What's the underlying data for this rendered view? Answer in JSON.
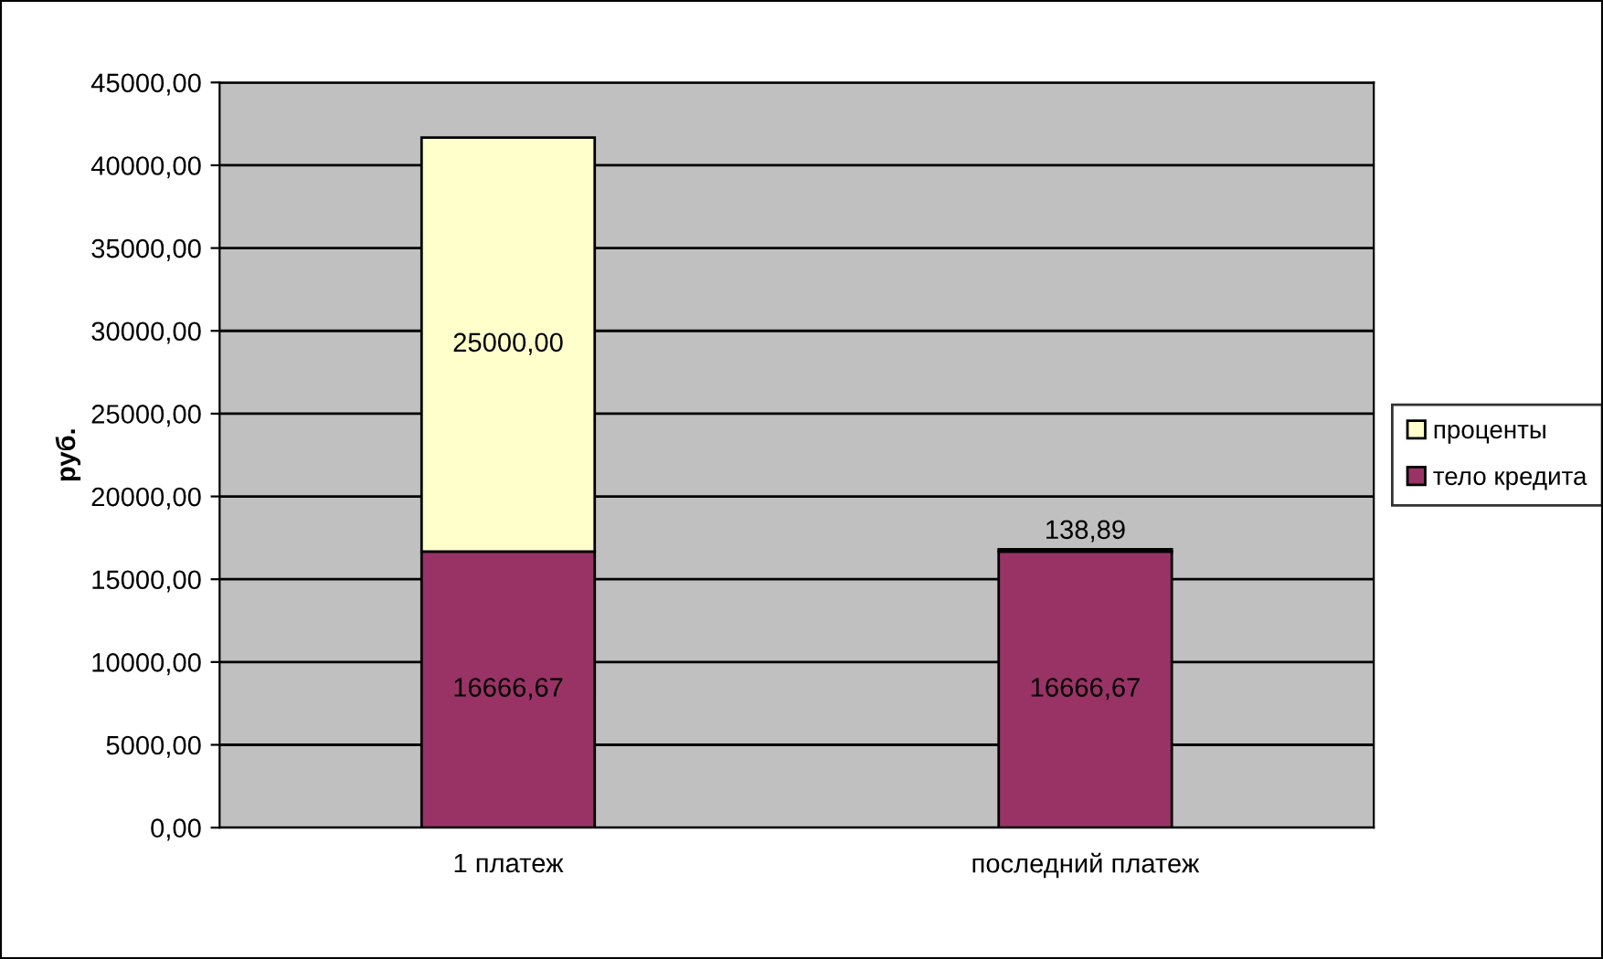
{
  "chart_data": {
    "type": "bar",
    "stacked": true,
    "ylabel": "руб.",
    "categories": [
      "1 платеж",
      "последний платеж"
    ],
    "series": [
      {
        "name": "тело кредита",
        "color": "#993366",
        "values": [
          16666.67,
          16666.67
        ],
        "value_labels": [
          "16666,67",
          "16666,67"
        ]
      },
      {
        "name": "проценты",
        "color": "#ffffcc",
        "values": [
          25000.0,
          138.89
        ],
        "value_labels": [
          "25000,00",
          "138,89"
        ]
      }
    ],
    "ylim": [
      0,
      45000
    ],
    "yticks": [
      {
        "value": 0,
        "label": "0,00"
      },
      {
        "value": 5000,
        "label": "5000,00"
      },
      {
        "value": 10000,
        "label": "10000,00"
      },
      {
        "value": 15000,
        "label": "15000,00"
      },
      {
        "value": 20000,
        "label": "20000,00"
      },
      {
        "value": 25000,
        "label": "25000,00"
      },
      {
        "value": 30000,
        "label": "30000,00"
      },
      {
        "value": 35000,
        "label": "35000,00"
      },
      {
        "value": 40000,
        "label": "40000,00"
      },
      {
        "value": 45000,
        "label": "45000,00"
      }
    ],
    "grid": "y",
    "legend": "right"
  }
}
